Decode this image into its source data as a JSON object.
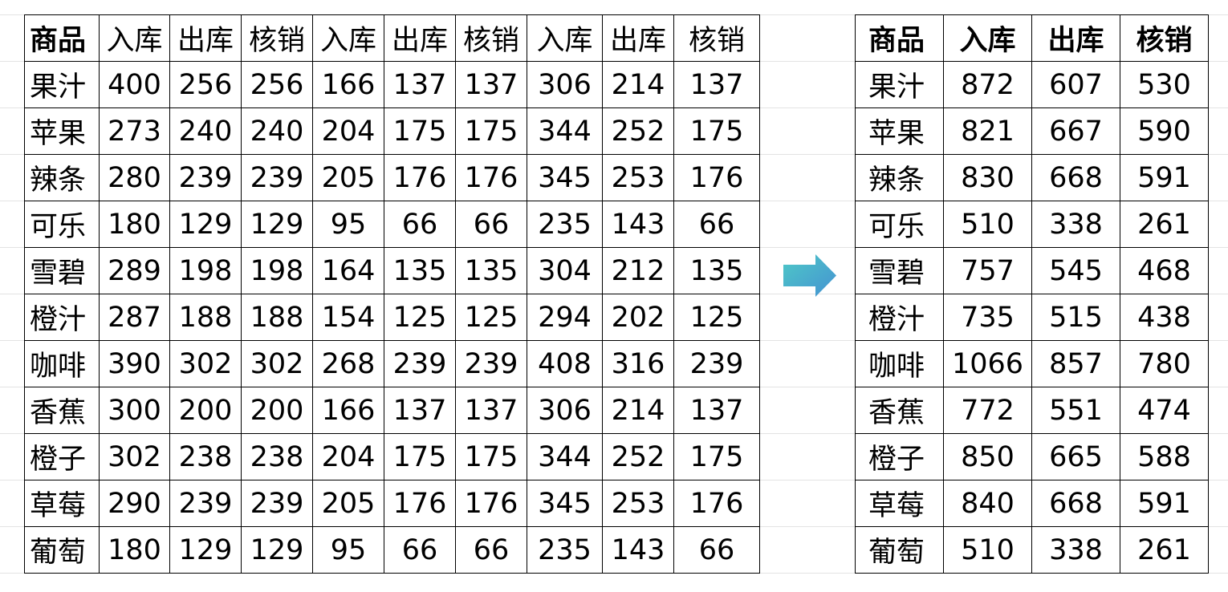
{
  "left_table": {
    "headers": [
      "商品",
      "入库",
      "出库",
      "核销",
      "入库",
      "出库",
      "核销",
      "入库",
      "出库",
      "核销"
    ],
    "rows": [
      [
        "果汁",
        "400",
        "256",
        "256",
        "166",
        "137",
        "137",
        "306",
        "214",
        "137"
      ],
      [
        "苹果",
        "273",
        "240",
        "240",
        "204",
        "175",
        "175",
        "344",
        "252",
        "175"
      ],
      [
        "辣条",
        "280",
        "239",
        "239",
        "205",
        "176",
        "176",
        "345",
        "253",
        "176"
      ],
      [
        "可乐",
        "180",
        "129",
        "129",
        "95",
        "66",
        "66",
        "235",
        "143",
        "66"
      ],
      [
        "雪碧",
        "289",
        "198",
        "198",
        "164",
        "135",
        "135",
        "304",
        "212",
        "135"
      ],
      [
        "橙汁",
        "287",
        "188",
        "188",
        "154",
        "125",
        "125",
        "294",
        "202",
        "125"
      ],
      [
        "咖啡",
        "390",
        "302",
        "302",
        "268",
        "239",
        "239",
        "408",
        "316",
        "239"
      ],
      [
        "香蕉",
        "300",
        "200",
        "200",
        "166",
        "137",
        "137",
        "306",
        "214",
        "137"
      ],
      [
        "橙子",
        "302",
        "238",
        "238",
        "204",
        "175",
        "175",
        "344",
        "252",
        "175"
      ],
      [
        "草莓",
        "290",
        "239",
        "239",
        "205",
        "176",
        "176",
        "345",
        "253",
        "176"
      ],
      [
        "葡萄",
        "180",
        "129",
        "129",
        "95",
        "66",
        "66",
        "235",
        "143",
        "66"
      ]
    ]
  },
  "right_table": {
    "headers": [
      "商品",
      "入库",
      "出库",
      "核销"
    ],
    "rows": [
      [
        "果汁",
        "872",
        "607",
        "530"
      ],
      [
        "苹果",
        "821",
        "667",
        "590"
      ],
      [
        "辣条",
        "830",
        "668",
        "591"
      ],
      [
        "可乐",
        "510",
        "338",
        "261"
      ],
      [
        "雪碧",
        "757",
        "545",
        "468"
      ],
      [
        "橙汁",
        "735",
        "515",
        "438"
      ],
      [
        "咖啡",
        "1066",
        "857",
        "780"
      ],
      [
        "香蕉",
        "772",
        "551",
        "474"
      ],
      [
        "橙子",
        "850",
        "665",
        "588"
      ],
      [
        "草莓",
        "840",
        "668",
        "591"
      ],
      [
        "葡萄",
        "510",
        "338",
        "261"
      ]
    ]
  },
  "arrow": {
    "icon": "right-arrow-icon",
    "gradient": [
      "#4ec9c7",
      "#4592d2"
    ]
  }
}
